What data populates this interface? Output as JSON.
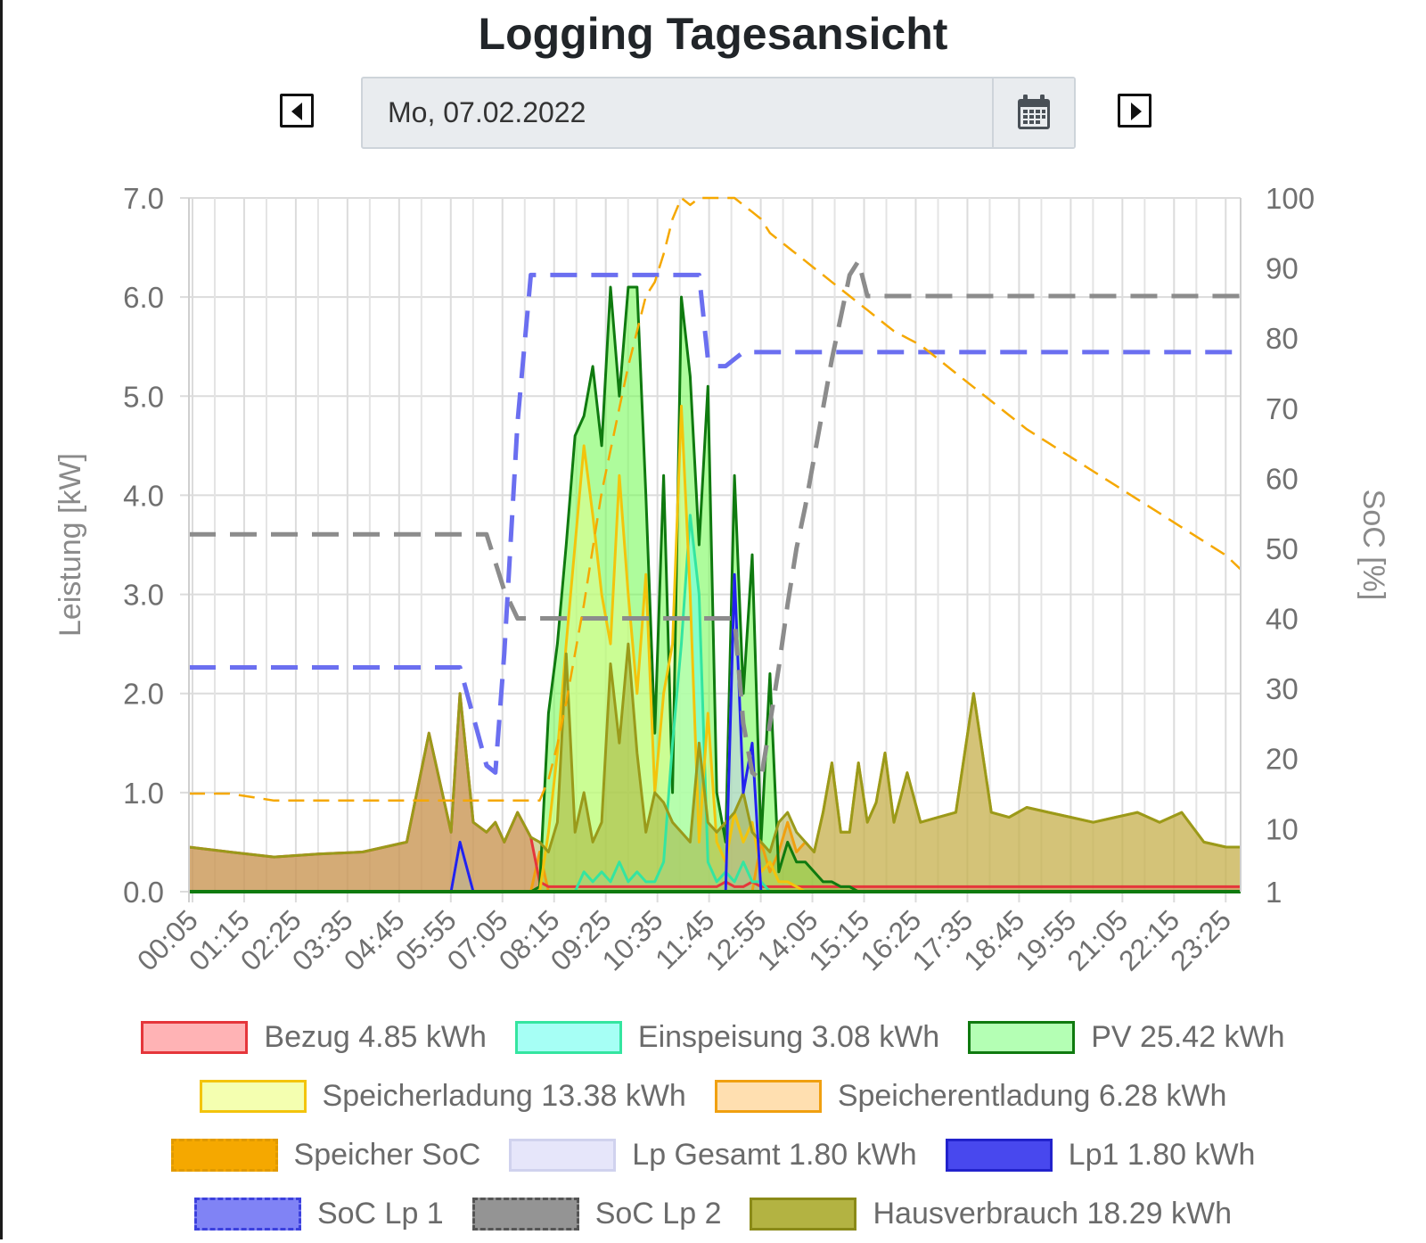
{
  "page": {
    "title": "Logging Tagesansicht",
    "date_display": "Mo, 07.02.2022"
  },
  "icons": {
    "prev": "caret-left-square-icon",
    "next": "caret-right-square-icon",
    "calendar": "calendar-icon"
  },
  "colors": {
    "bezug": "#e5363b",
    "einspeisung": "#34e5a0",
    "pv": "#0f7a0f",
    "speicherladung": "#f3c40c",
    "speicherentladung": "#f0a010",
    "speicher_soc": "#f5a800",
    "lp_gesamt": "#c6c8f0",
    "lp1": "#2222ee",
    "soc_lp1": "#6b6ff0",
    "soc_lp2": "#8c8c8c",
    "hausverbrauch": "#9a9a1a"
  },
  "chart_data": {
    "type": "area",
    "ylabel_left": "Leistung [kW]",
    "ylabel_right": "SoC [%]",
    "ylim_left": [
      0,
      7
    ],
    "ylim_right": [
      1,
      100
    ],
    "yticks_left": [
      "0.0",
      "1.0",
      "2.0",
      "3.0",
      "4.0",
      "5.0",
      "6.0",
      "7.0"
    ],
    "yticks_right": [
      "1",
      "10",
      "20",
      "30",
      "40",
      "50",
      "60",
      "70",
      "80",
      "90",
      "100"
    ],
    "xticks": [
      "00:05",
      "01:15",
      "02:25",
      "03:35",
      "04:45",
      "05:55",
      "07:05",
      "08:15",
      "09:25",
      "10:35",
      "11:45",
      "12:55",
      "14:05",
      "15:15",
      "16:25",
      "17:35",
      "18:45",
      "19:55",
      "21:05",
      "22:15",
      "23:25"
    ],
    "grid": true,
    "legend_placement": "bottom",
    "x_hours": [
      0.08,
      1.0,
      2.0,
      3.0,
      4.0,
      5.0,
      5.5,
      6.0,
      6.2,
      6.5,
      6.8,
      7.0,
      7.2,
      7.5,
      7.8,
      8.0,
      8.2,
      8.4,
      8.6,
      8.8,
      9.0,
      9.2,
      9.4,
      9.6,
      9.8,
      10.0,
      10.2,
      10.4,
      10.6,
      10.8,
      11.0,
      11.2,
      11.4,
      11.6,
      11.8,
      12.0,
      12.2,
      12.4,
      12.6,
      12.8,
      13.0,
      13.2,
      13.4,
      13.6,
      13.8,
      14.0,
      14.2,
      14.4,
      14.6,
      14.8,
      15.0,
      15.2,
      15.4,
      15.6,
      15.8,
      16.0,
      16.3,
      16.6,
      17.0,
      17.4,
      17.8,
      18.2,
      18.6,
      19.0,
      19.5,
      20.0,
      20.5,
      21.0,
      21.5,
      22.0,
      22.5,
      23.0,
      23.5,
      23.83
    ],
    "series": [
      {
        "name": "Bezug 4.85 kWh",
        "key": "bezug",
        "axis": "left",
        "style": "area",
        "values": [
          0.45,
          0.4,
          0.35,
          0.38,
          0.4,
          0.5,
          1.6,
          0.6,
          2.0,
          0.7,
          0.6,
          0.7,
          0.5,
          0.8,
          0.55,
          0.1,
          0.05,
          0.05,
          0.05,
          0.05,
          0.05,
          0.05,
          0.05,
          0.05,
          0.05,
          0.05,
          0.05,
          0.05,
          0.05,
          0.05,
          0.05,
          0.05,
          0.05,
          0.05,
          0.05,
          0.05,
          0.1,
          0.05,
          0.05,
          0.1,
          0.05,
          0.05,
          0.05,
          0.05,
          0.05,
          0.05,
          0.05,
          0.05,
          0.05,
          0.05,
          0.05,
          0.05,
          0.05,
          0.05,
          0.05,
          0.05,
          0.05,
          0.05,
          0.05,
          0.05,
          0.05,
          0.05,
          0.05,
          0.05,
          0.05,
          0.05,
          0.05,
          0.05,
          0.05,
          0.05,
          0.05,
          0.05,
          0.05,
          0.05
        ]
      },
      {
        "name": "Einspeisung 3.08 kWh",
        "key": "einspeisung",
        "axis": "left",
        "style": "area",
        "values": [
          0,
          0,
          0,
          0,
          0,
          0,
          0,
          0,
          0,
          0,
          0,
          0,
          0,
          0,
          0,
          0,
          0,
          0,
          0,
          0,
          0.2,
          0.1,
          0.2,
          0.1,
          0.3,
          0.1,
          0.2,
          0.1,
          0.1,
          0.3,
          1.5,
          2.5,
          3.8,
          3.0,
          0.3,
          0.1,
          0.2,
          0.1,
          0.3,
          0.1,
          0.1,
          0,
          0,
          0,
          0,
          0,
          0,
          0,
          0,
          0,
          0,
          0,
          0,
          0,
          0,
          0,
          0,
          0,
          0,
          0,
          0,
          0,
          0,
          0,
          0,
          0,
          0,
          0,
          0,
          0,
          0,
          0,
          0,
          0
        ]
      },
      {
        "name": "PV 25.42 kWh",
        "key": "pv",
        "axis": "left",
        "style": "area",
        "values": [
          0,
          0,
          0,
          0,
          0,
          0,
          0,
          0,
          0,
          0,
          0,
          0,
          0,
          0,
          0,
          0.05,
          1.8,
          2.5,
          3.5,
          4.6,
          4.8,
          5.3,
          4.5,
          6.1,
          5.0,
          6.1,
          6.1,
          4.0,
          1.6,
          4.2,
          1.0,
          6.0,
          5.2,
          3.5,
          5.1,
          1.0,
          0.5,
          4.2,
          2.0,
          3.4,
          0.5,
          2.2,
          0.2,
          0.5,
          0.3,
          0.3,
          0.2,
          0.1,
          0.1,
          0.05,
          0.05,
          0,
          0,
          0,
          0,
          0,
          0,
          0,
          0,
          0,
          0,
          0,
          0,
          0,
          0,
          0,
          0,
          0,
          0,
          0,
          0,
          0,
          0,
          0
        ]
      },
      {
        "name": "Speicherladung 13.38 kWh",
        "key": "speicherladung",
        "axis": "left",
        "style": "area",
        "values": [
          0,
          0,
          0,
          0,
          0,
          0,
          0,
          0,
          0,
          0,
          0,
          0,
          0,
          0,
          0,
          0,
          0.6,
          1.4,
          2.5,
          3.5,
          4.5,
          3.8,
          3.0,
          2.5,
          4.2,
          3.0,
          2.0,
          3.2,
          1.0,
          2.0,
          2.5,
          4.9,
          3.0,
          0.5,
          1.8,
          0.5,
          0.3,
          0.8,
          0.5,
          0.7,
          0.2,
          0.3,
          0.1,
          0.1,
          0.05,
          0,
          0,
          0,
          0,
          0,
          0,
          0,
          0,
          0,
          0,
          0,
          0,
          0,
          0,
          0,
          0,
          0,
          0,
          0,
          0,
          0,
          0,
          0,
          0,
          0,
          0,
          0,
          0,
          0
        ]
      },
      {
        "name": "Speicherentladung 6.28 kWh",
        "key": "speicherentladung",
        "axis": "left",
        "style": "area",
        "values": [
          0,
          0,
          0,
          0,
          0,
          0,
          0,
          0,
          0,
          0,
          0,
          0,
          0,
          0,
          0,
          0.4,
          0,
          0,
          0,
          0,
          0,
          0,
          0,
          0,
          0,
          0,
          0,
          0,
          0,
          0,
          0,
          0,
          0,
          0,
          0,
          0,
          0,
          0,
          0,
          0,
          0.5,
          0.2,
          0.4,
          0.7,
          0.4,
          0.5,
          0.4,
          0.8,
          1.3,
          0.6,
          0.6,
          1.3,
          0.7,
          0.9,
          1.4,
          0.7,
          1.2,
          0.7,
          0.75,
          0.8,
          2.0,
          0.8,
          0.75,
          0.85,
          0.8,
          0.75,
          0.7,
          0.75,
          0.8,
          0.7,
          0.8,
          0.5,
          0.45,
          0.45
        ]
      },
      {
        "name": "Speicher SoC",
        "key": "speicher_soc",
        "axis": "right",
        "style": "dashed",
        "values": [
          15,
          15,
          14,
          14,
          14,
          14,
          14,
          14,
          14,
          14,
          14,
          14,
          14,
          14,
          14,
          14,
          17,
          22,
          28,
          35,
          42,
          50,
          58,
          64,
          70,
          76,
          81,
          86,
          88,
          92,
          97,
          100,
          99,
          100,
          100,
          100,
          100,
          100,
          99,
          98,
          97,
          95,
          94,
          93,
          92,
          91,
          90,
          89,
          88,
          87,
          86,
          85,
          84,
          83,
          82,
          81,
          80,
          79,
          77,
          75,
          73,
          71,
          69,
          67,
          65,
          63,
          61,
          59,
          57,
          55,
          53,
          51,
          49,
          47
        ]
      },
      {
        "name": "Lp Gesamt 1.80 kWh",
        "key": "lp_gesamt",
        "axis": "left",
        "style": "area",
        "values": [
          0,
          0,
          0,
          0,
          0,
          0,
          0,
          0,
          0.5,
          0,
          0,
          0,
          0,
          0,
          0,
          0,
          0,
          0,
          0,
          0,
          0,
          0,
          0,
          0,
          0,
          0,
          0,
          0,
          0,
          0,
          0,
          0,
          0,
          0,
          0,
          0,
          0,
          3.2,
          1.0,
          1.5,
          0,
          0,
          0,
          0,
          0,
          0,
          0,
          0,
          0,
          0,
          0,
          0,
          0,
          0,
          0,
          0,
          0,
          0,
          0,
          0,
          0,
          0,
          0,
          0,
          0,
          0,
          0,
          0,
          0,
          0,
          0,
          0,
          0,
          0
        ]
      },
      {
        "name": "Lp1 1.80 kWh",
        "key": "lp1",
        "axis": "left",
        "style": "line",
        "values": [
          0,
          0,
          0,
          0,
          0,
          0,
          0,
          0,
          0.5,
          0,
          0,
          0,
          0,
          0,
          0,
          0,
          0,
          0,
          0,
          0,
          0,
          0,
          0,
          0,
          0,
          0,
          0,
          0,
          0,
          0,
          0,
          0,
          0,
          0,
          0,
          0,
          0,
          3.2,
          1.0,
          1.5,
          0,
          0,
          0,
          0,
          0,
          0,
          0,
          0,
          0,
          0,
          0,
          0,
          0,
          0,
          0,
          0,
          0,
          0,
          0,
          0,
          0,
          0,
          0,
          0,
          0,
          0,
          0,
          0,
          0,
          0,
          0,
          0,
          0,
          0
        ]
      },
      {
        "name": "SoC Lp 1",
        "key": "soc_lp1",
        "axis": "right",
        "style": "dashed",
        "values": [
          33,
          33,
          33,
          33,
          33,
          33,
          33,
          33,
          33,
          26,
          19,
          18,
          35,
          68,
          89,
          89,
          89,
          89,
          89,
          89,
          89,
          89,
          89,
          89,
          89,
          89,
          89,
          89,
          89,
          89,
          89,
          89,
          89,
          89,
          77,
          76,
          76,
          77,
          78,
          78,
          78,
          78,
          78,
          78,
          78,
          78,
          78,
          78,
          78,
          78,
          78,
          78,
          78,
          78,
          78,
          78,
          78,
          78,
          78,
          78,
          78,
          78,
          78,
          78,
          78,
          78,
          78,
          78,
          78,
          78,
          78,
          78,
          78,
          78
        ]
      },
      {
        "name": "SoC Lp 2",
        "key": "soc_lp2",
        "axis": "right",
        "style": "dashed",
        "values": [
          52,
          52,
          52,
          52,
          52,
          52,
          52,
          52,
          52,
          52,
          52,
          48,
          44,
          40,
          40,
          40,
          40,
          40,
          40,
          40,
          40,
          40,
          40,
          40,
          40,
          40,
          40,
          40,
          40,
          40,
          40,
          40,
          40,
          40,
          40,
          40,
          40,
          40,
          25,
          18,
          17,
          25,
          33,
          42,
          50,
          56,
          63,
          70,
          77,
          83,
          89,
          91,
          86,
          86,
          86,
          86,
          86,
          86,
          86,
          86,
          86,
          86,
          86,
          86,
          86,
          86,
          86,
          86,
          86,
          86,
          86,
          86,
          86,
          86
        ]
      },
      {
        "name": "Hausverbrauch 18.29 kWh",
        "key": "hausverbrauch",
        "axis": "left",
        "style": "area",
        "values": [
          0.45,
          0.4,
          0.35,
          0.38,
          0.4,
          0.5,
          1.6,
          0.6,
          2.0,
          0.7,
          0.6,
          0.7,
          0.5,
          0.8,
          0.55,
          0.5,
          0.4,
          0.7,
          2.4,
          0.6,
          1.0,
          0.5,
          0.7,
          2.3,
          1.5,
          2.5,
          1.4,
          0.6,
          1.0,
          0.9,
          0.7,
          0.6,
          0.5,
          1.5,
          0.7,
          0.6,
          0.7,
          0.8,
          1.0,
          0.6,
          0.5,
          0.4,
          0.7,
          0.8,
          0.6,
          0.5,
          0.4,
          0.8,
          1.3,
          0.6,
          0.6,
          1.3,
          0.7,
          0.9,
          1.4,
          0.7,
          1.2,
          0.7,
          0.75,
          0.8,
          2.0,
          0.8,
          0.75,
          0.85,
          0.8,
          0.75,
          0.7,
          0.75,
          0.8,
          0.7,
          0.8,
          0.5,
          0.45,
          0.45
        ]
      }
    ]
  }
}
